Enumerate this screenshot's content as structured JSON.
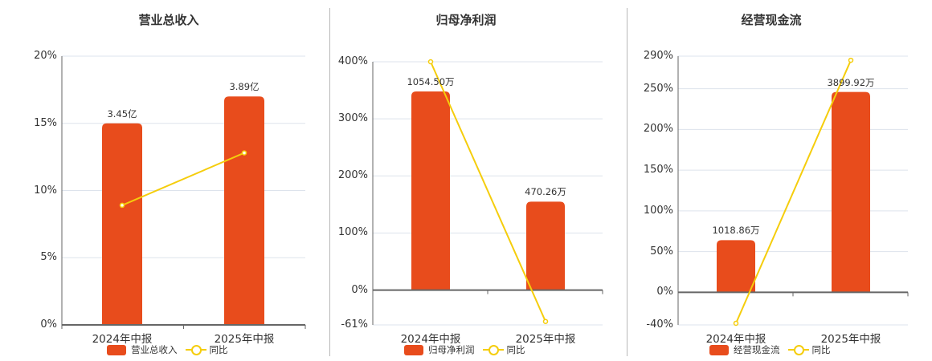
{
  "colors": {
    "bar": "#E84C1C",
    "line": "#F5CD0C",
    "grid": "#DDE3EC",
    "axis": "#666666",
    "text": "#333333"
  },
  "chart_data": [
    {
      "type": "bar+line",
      "title": "营业总收入",
      "categories": [
        "2024年中报",
        "2025年中报"
      ],
      "series": [
        {
          "name": "营业总收入",
          "type": "bar",
          "values": [
            3.45,
            3.89
          ],
          "unit": "亿",
          "labels": [
            "3.45亿",
            "3.89亿"
          ],
          "bar_pct_height": [
            15.0,
            17.0
          ]
        },
        {
          "name": "同比",
          "type": "line",
          "values": [
            8.9,
            12.8
          ],
          "unit": "%"
        }
      ],
      "yaxis": {
        "ticks": [
          "20%",
          "15%",
          "10%",
          "5%",
          "0%"
        ],
        "tick_values": [
          20,
          15,
          10,
          5,
          0
        ],
        "ylim": [
          0,
          20
        ]
      },
      "legend": {
        "position": "bottom",
        "entries": [
          "营业总收入",
          "同比"
        ]
      },
      "grid": true
    },
    {
      "type": "bar+line",
      "title": "归母净利润",
      "categories": [
        "2024年中报",
        "2025年中报"
      ],
      "series": [
        {
          "name": "归母净利润",
          "type": "bar",
          "values": [
            1054.5,
            470.26
          ],
          "unit": "万",
          "labels": [
            "1054.50万",
            "470.26万"
          ],
          "bar_pct_height": [
            348,
            155
          ]
        },
        {
          "name": "同比",
          "type": "line",
          "values": [
            400,
            -55
          ],
          "unit": "%"
        }
      ],
      "yaxis": {
        "ticks": [
          "400%",
          "300%",
          "200%",
          "100%",
          "0%",
          "-61%"
        ],
        "tick_values": [
          400,
          300,
          200,
          100,
          0,
          -61
        ],
        "ylim": [
          -61,
          400
        ]
      },
      "legend": {
        "position": "bottom",
        "entries": [
          "归母净利润",
          "同比"
        ]
      },
      "grid": true
    },
    {
      "type": "bar+line",
      "title": "经营现金流",
      "categories": [
        "2024年中报",
        "2025年中报"
      ],
      "series": [
        {
          "name": "经营现金流",
          "type": "bar",
          "values": [
            1018.86,
            3899.92
          ],
          "unit": "万",
          "labels": [
            "1018.86万",
            "3899.92万"
          ],
          "bar_pct_height": [
            64,
            246
          ]
        },
        {
          "name": "同比",
          "type": "line",
          "values": [
            -38,
            285
          ],
          "unit": "%"
        }
      ],
      "yaxis": {
        "ticks": [
          "290%",
          "250%",
          "200%",
          "150%",
          "100%",
          "50%",
          "0%",
          "-40%"
        ],
        "tick_values": [
          290,
          250,
          200,
          150,
          100,
          50,
          0,
          -40
        ],
        "ylim": [
          -40,
          290
        ]
      },
      "legend": {
        "position": "bottom",
        "entries": [
          "经营现金流",
          "同比"
        ]
      },
      "grid": true
    }
  ]
}
